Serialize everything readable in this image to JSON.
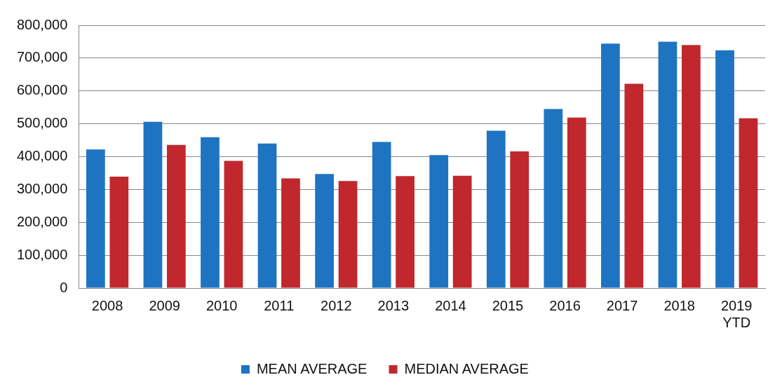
{
  "chart_data": {
    "type": "bar",
    "categories": [
      "2008",
      "2009",
      "2010",
      "2011",
      "2012",
      "2013",
      "2014",
      "2015",
      "2016",
      "2017",
      "2018",
      "2019 YTD"
    ],
    "series": [
      {
        "name": "MEAN AVERAGE",
        "color": "#1f74c2",
        "values": [
          422000,
          506000,
          459000,
          440000,
          347000,
          445000,
          405000,
          479000,
          545000,
          744000,
          750000,
          724000
        ]
      },
      {
        "name": "MEDIAN AVERAGE",
        "color": "#c0282e",
        "values": [
          339000,
          436000,
          387000,
          334000,
          326000,
          341000,
          342000,
          416000,
          519000,
          622000,
          740000,
          517000
        ]
      }
    ],
    "ylim": [
      0,
      800000
    ],
    "yticks": [
      0,
      {
        "value": 100000,
        "label": "100,000"
      },
      {
        "value": 200000,
        "label": "200,000"
      },
      {
        "value": 300000,
        "label": "300,000"
      },
      {
        "value": 400000,
        "label": "400,000"
      },
      {
        "value": 500000,
        "label": "500,000"
      },
      {
        "value": 600000,
        "label": "600,000"
      },
      {
        "value": 700000,
        "label": "700,000"
      },
      {
        "value": 800000,
        "label": "800,000"
      }
    ],
    "grid": "y",
    "legend": "bottom"
  }
}
